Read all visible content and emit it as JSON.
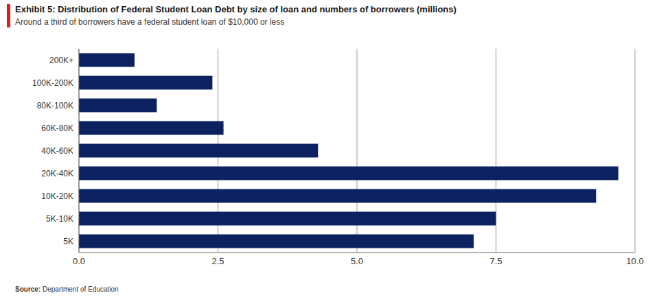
{
  "chart_data": {
    "type": "bar",
    "orientation": "horizontal",
    "title": "Exhibit 5: Distribution of Federal Student Loan Debt by size of loan and numbers of borrowers (millions)",
    "subtitle": "Around a third of borrowers have a federal student loan of $10,000 or less",
    "source_label": "Source:",
    "source": "Department of Education",
    "categories": [
      "200K+",
      "100K-200K",
      "80K-100K",
      "60K-80K",
      "40K-60K",
      "20K-40K",
      "10K-20K",
      "5K-10K",
      "5K"
    ],
    "values": [
      1.0,
      2.4,
      1.4,
      2.6,
      4.3,
      9.7,
      9.3,
      7.5,
      7.1
    ],
    "color": "#0c2260",
    "xlim": [
      0,
      10
    ],
    "xticks": [
      {
        "value": 0,
        "label": "0.0"
      },
      2.5,
      {
        "value": 5,
        "label": "5.0"
      },
      7.5,
      {
        "value": 10,
        "label": "10.0"
      }
    ],
    "grid": true
  }
}
